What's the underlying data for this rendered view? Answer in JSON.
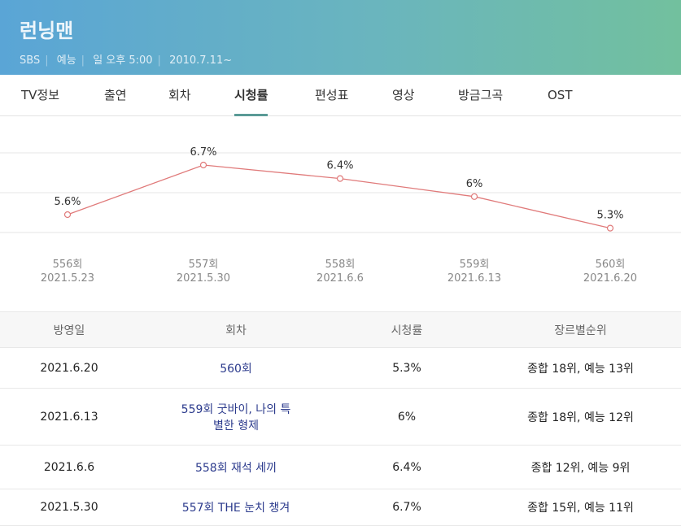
{
  "header": {
    "title": "런닝맨",
    "broadcaster": "SBS",
    "genre": "예능",
    "schedule": "일 오후 5:00",
    "start": "2010.7.11~"
  },
  "tabs": [
    "TV정보",
    "출연",
    "회차",
    "시청률",
    "편성표",
    "영상",
    "방금그곡",
    "OST"
  ],
  "active_tab": "시청률",
  "chart_data": {
    "type": "line",
    "color": "#e07a7a",
    "categories": [
      "556회",
      "557회",
      "558회",
      "559회",
      "560회"
    ],
    "dates": [
      "2021.5.23",
      "2021.5.30",
      "2021.6.6",
      "2021.6.13",
      "2021.6.20"
    ],
    "values": [
      5.6,
      6.7,
      6.4,
      6,
      5.3
    ],
    "labels": [
      "5.6%",
      "6.7%",
      "6.4%",
      "6%",
      "5.3%"
    ],
    "grid": true
  },
  "table": {
    "headers": [
      "방영일",
      "회차",
      "시청률",
      "장르별순위"
    ],
    "rows": [
      [
        "2021.6.20",
        "560회",
        "5.3%",
        "종합 18위, 예능 13위"
      ],
      [
        "2021.6.13",
        "559회 굿바이, 나의 특별한 형제",
        "6%",
        "종합 18위, 예능 12위"
      ],
      [
        "2021.6.6",
        "558회 재석 세끼",
        "6.4%",
        "종합 12위, 예능 9위"
      ],
      [
        "2021.5.30",
        "557회 THE 눈치 챙겨",
        "6.7%",
        "종합 15위, 예능 11위"
      ]
    ]
  }
}
